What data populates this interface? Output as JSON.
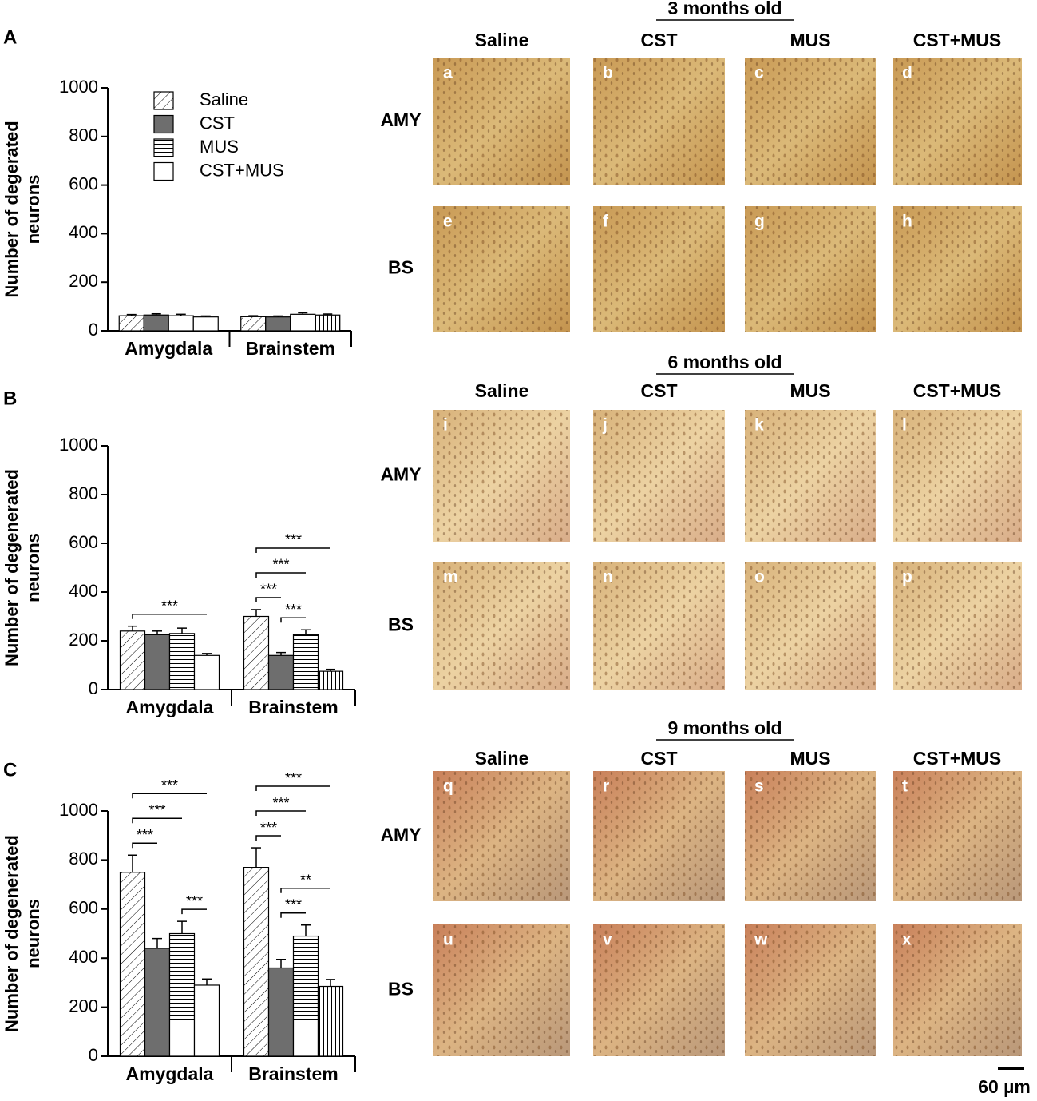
{
  "chart_data": [
    {
      "type": "bar",
      "panel": "A",
      "ylabel": [
        "Number of degerated",
        "neurons"
      ],
      "categories": [
        "Amygdala",
        "Brainstem"
      ],
      "ylim": [
        0,
        1000
      ],
      "yticks": [
        0,
        200,
        400,
        600,
        800,
        1000
      ],
      "legend": true,
      "series": [
        {
          "name": "Saline",
          "color": "#ffffff",
          "pattern": "diagonal",
          "values": [
            62,
            58
          ],
          "errors": [
            5,
            4
          ]
        },
        {
          "name": "CST",
          "color": "#6e6e6e",
          "pattern": "solid",
          "values": [
            65,
            57
          ],
          "errors": [
            5,
            4
          ]
        },
        {
          "name": "MUS",
          "color": "#ffffff",
          "pattern": "horizontal",
          "values": [
            62,
            68
          ],
          "errors": [
            6,
            6
          ]
        },
        {
          "name": "CST+MUS",
          "color": "#ffffff",
          "pattern": "vertical",
          "values": [
            57,
            65
          ],
          "errors": [
            4,
            4
          ]
        }
      ],
      "annotations": []
    },
    {
      "type": "bar",
      "panel": "B",
      "ylabel": [
        "Number of degenerated",
        "neurons"
      ],
      "categories": [
        "Amygdala",
        "Brainstem"
      ],
      "ylim": [
        0,
        1000
      ],
      "yticks": [
        0,
        200,
        400,
        600,
        800,
        1000
      ],
      "legend": false,
      "series": [
        {
          "name": "Saline",
          "color": "#ffffff",
          "pattern": "diagonal",
          "values": [
            240,
            300
          ],
          "errors": [
            20,
            28
          ]
        },
        {
          "name": "CST",
          "color": "#6e6e6e",
          "pattern": "solid",
          "values": [
            225,
            140
          ],
          "errors": [
            15,
            12
          ]
        },
        {
          "name": "MUS",
          "color": "#ffffff",
          "pattern": "horizontal",
          "values": [
            230,
            225
          ],
          "errors": [
            22,
            20
          ]
        },
        {
          "name": "CST+MUS",
          "color": "#ffffff",
          "pattern": "vertical",
          "values": [
            140,
            75
          ],
          "errors": [
            8,
            8
          ]
        }
      ],
      "annotations": [
        {
          "text": "***",
          "category": 0,
          "from": 0,
          "to": 3
        },
        {
          "text": "***",
          "category": 1,
          "from": 0,
          "to": 1
        },
        {
          "text": "***",
          "category": 1,
          "from": 0,
          "to": 2
        },
        {
          "text": "***",
          "category": 1,
          "from": 0,
          "to": 3
        },
        {
          "text": "***",
          "category": 1,
          "from": 1,
          "to": 2
        }
      ]
    },
    {
      "type": "bar",
      "panel": "C",
      "ylabel": [
        "Number of degenerated",
        "neurons"
      ],
      "categories": [
        "Amygdala",
        "Brainstem"
      ],
      "ylim": [
        0,
        1000
      ],
      "yticks": [
        0,
        200,
        400,
        600,
        800,
        1000
      ],
      "legend": false,
      "series": [
        {
          "name": "Saline",
          "color": "#ffffff",
          "pattern": "diagonal",
          "values": [
            750,
            770
          ],
          "errors": [
            70,
            80
          ]
        },
        {
          "name": "CST",
          "color": "#6e6e6e",
          "pattern": "solid",
          "values": [
            440,
            360
          ],
          "errors": [
            40,
            35
          ]
        },
        {
          "name": "MUS",
          "color": "#ffffff",
          "pattern": "horizontal",
          "values": [
            500,
            490
          ],
          "errors": [
            50,
            45
          ]
        },
        {
          "name": "CST+MUS",
          "color": "#ffffff",
          "pattern": "vertical",
          "values": [
            290,
            285
          ],
          "errors": [
            25,
            28
          ]
        }
      ],
      "annotations": [
        {
          "text": "***",
          "category": 0,
          "from": 0,
          "to": 1
        },
        {
          "text": "***",
          "category": 0,
          "from": 0,
          "to": 2
        },
        {
          "text": "***",
          "category": 0,
          "from": 0,
          "to": 3
        },
        {
          "text": "***",
          "category": 0,
          "from": 2,
          "to": 3
        },
        {
          "text": "***",
          "category": 1,
          "from": 0,
          "to": 1
        },
        {
          "text": "***",
          "category": 1,
          "from": 0,
          "to": 2
        },
        {
          "text": "***",
          "category": 1,
          "from": 0,
          "to": 3
        },
        {
          "text": "***",
          "category": 1,
          "from": 1,
          "to": 2
        },
        {
          "text": "**",
          "category": 1,
          "from": 1,
          "to": 3
        }
      ]
    }
  ],
  "micrographs": {
    "groups": [
      {
        "title": "3 months old",
        "columns": [
          "Saline",
          "CST",
          "MUS",
          "CST+MUS"
        ],
        "rows": [
          {
            "label": "AMY",
            "panels": [
              "a",
              "b",
              "c",
              "d"
            ]
          },
          {
            "label": "BS",
            "panels": [
              "e",
              "f",
              "g",
              "h"
            ]
          }
        ]
      },
      {
        "title": "6 months old",
        "columns": [
          "Saline",
          "CST",
          "MUS",
          "CST+MUS"
        ],
        "rows": [
          {
            "label": "AMY",
            "panels": [
              "i",
              "j",
              "k",
              "l"
            ]
          },
          {
            "label": "BS",
            "panels": [
              "m",
              "n",
              "o",
              "p"
            ]
          }
        ]
      },
      {
        "title": "9 months old",
        "columns": [
          "Saline",
          "CST",
          "MUS",
          "CST+MUS"
        ],
        "rows": [
          {
            "label": "AMY",
            "panels": [
              "q",
              "r",
              "s",
              "t"
            ]
          },
          {
            "label": "BS",
            "panels": [
              "u",
              "v",
              "w",
              "x"
            ]
          }
        ]
      }
    ],
    "scale_bar": "60 µm"
  }
}
